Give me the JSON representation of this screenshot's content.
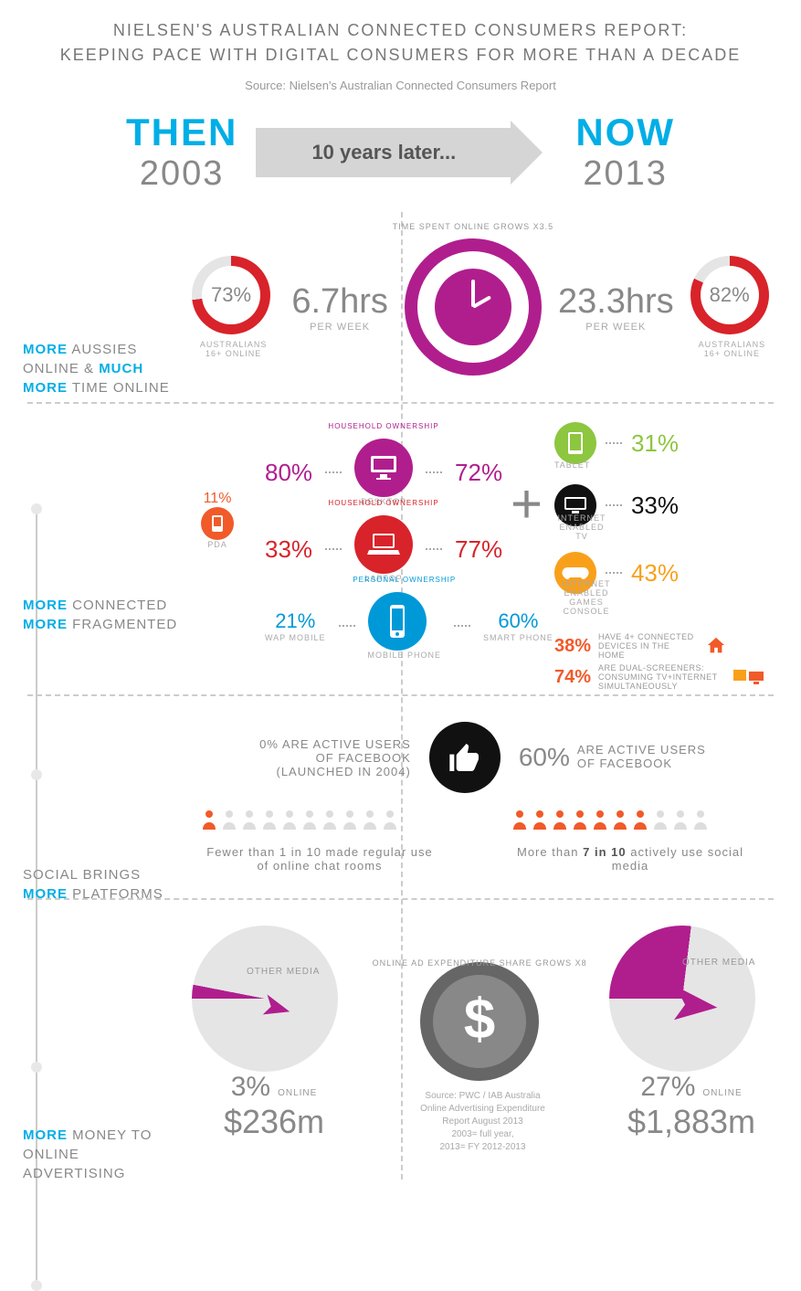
{
  "title_line1": "NIELSEN'S AUSTRALIAN CONNECTED CONSUMERS REPORT:",
  "title_line2": "KEEPING PACE WITH DIGITAL CONSUMERS FOR MORE THAN A DECADE",
  "source_top": "Source:  Nielsen's Australian Connected Consumers Report",
  "header": {
    "then_word": "THEN",
    "then_year": "2003",
    "arrow_text": "10 years later...",
    "now_word": "NOW",
    "now_year": "2013"
  },
  "colors": {
    "blue": "#00aee6",
    "magenta": "#b01e8e",
    "red": "#d8232a",
    "darkblue": "#0099d8",
    "green": "#8dc63f",
    "black": "#111111",
    "orange": "#f9a01b",
    "orange2": "#f15a29",
    "grey": "#888888",
    "lightgrey": "#e5e5e5"
  },
  "left_labels": {
    "l1a": "MORE",
    "l1b": " AUSSIES ONLINE & ",
    "l1c": "MUCH MORE",
    "l1d": " TIME ONLINE",
    "l2a": "MORE",
    "l2b": " CONNECTED",
    "l2c": "MORE",
    "l2d": " FRAGMENTED",
    "l3a": "SOCIAL BRINGS ",
    "l3b": "MORE",
    "l3c": " PLATFORMS",
    "l4a": "MORE",
    "l4b": " MONEY TO ONLINE ADVERTISING"
  },
  "sec1": {
    "then_pct": "73%",
    "then_pct_deg": "263deg",
    "now_pct": "82%",
    "now_pct_deg": "295deg",
    "donut_label": "AUSTRALIANS 16+ ONLINE",
    "then_hrs": "6.7hrs",
    "now_hrs": "23.3hrs",
    "per_week": "PER WEEK",
    "clock_label": "TIME SPENT ONLINE GROWS X3.5"
  },
  "sec2": {
    "pda_pct": "11%",
    "pda_label": "PDA",
    "desktop_label": "DESKTOP",
    "desktop_arc": "HOUSEHOLD OWNERSHIP",
    "desktop_then": "80%",
    "desktop_now": "72%",
    "laptop_label": "LAPTOP",
    "laptop_arc": "HOUSEHOLD OWNERSHIP",
    "laptop_then": "33%",
    "laptop_now": "77%",
    "mobile_label": "MOBILE PHONE",
    "mobile_arc": "PERSONAL OWNERSHIP",
    "wap_pct": "21%",
    "wap_label": "WAP MOBILE",
    "smart_pct": "60%",
    "smart_label": "SMART PHONE",
    "tablet_pct": "31%",
    "tablet_label": "TABLET",
    "itv_pct": "33%",
    "itv_label": "INTERNET ENABLED TV",
    "console_pct": "43%",
    "console_label": "INTERNET ENABLED GAMES CONSOLE",
    "fact1_pct": "38%",
    "fact1_text": "HAVE 4+ CONNECTED DEVICES IN THE HOME",
    "fact2_pct": "74%",
    "fact2_text": "ARE DUAL-SCREENERS: CONSUMING TV+INTERNET SIMULTANEOUSLY",
    "plus": "+"
  },
  "sec3": {
    "then_text1": "0% ARE ACTIVE USERS",
    "then_text2": "OF FACEBOOK",
    "then_text3": "(LAUNCHED IN 2004)",
    "now_text1": "60%",
    "now_text2": "ARE ACTIVE USERS",
    "now_text3": "OF FACEBOOK",
    "then_people_active": 1,
    "now_people_active": 7,
    "then_caption": "Fewer than 1 in 10 made regular use of  online chat rooms",
    "now_caption_a": "More than ",
    "now_caption_b": "7 in 10",
    "now_caption_c": " actively use social media"
  },
  "sec4": {
    "other_media": "OTHER MEDIA",
    "online_label": "ONLINE",
    "then_pct": "3%",
    "then_slice": "11deg",
    "then_amount": "$236m",
    "now_pct": "27%",
    "now_slice": "97deg",
    "now_amount": "$1,883m",
    "dollar_label": "ONLINE AD EXPENDITURE SHARE GROWS X8",
    "source1": "Source: PWC / IAB Australia",
    "source2": "Online Advertising Expenditure",
    "source3": "Report August 2013",
    "source4": "2003= full year,",
    "source5": "2013= FY 2012-2013"
  }
}
